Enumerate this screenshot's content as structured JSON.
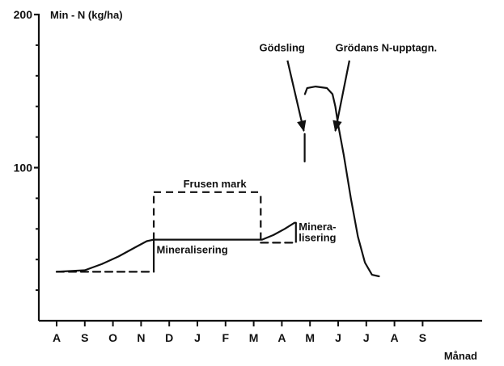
{
  "chart_data": {
    "type": "line",
    "ylabel": "Min - N (kg/ha)",
    "xlabel": "Månad",
    "ylim": [
      0,
      200
    ],
    "yticks": [
      {
        "value": 200,
        "label": "200"
      },
      {
        "value": 100,
        "label": "100"
      }
    ],
    "months": [
      "A",
      "S",
      "O",
      "N",
      "D",
      "J",
      "F",
      "M",
      "A",
      "M",
      "J",
      "J",
      "A",
      "S"
    ],
    "series": [
      {
        "style": "solid",
        "points": [
          [
            0.0,
            32
          ],
          [
            1.0,
            33
          ],
          [
            1.6,
            37
          ],
          [
            2.2,
            42
          ],
          [
            2.8,
            48
          ],
          [
            3.2,
            52
          ],
          [
            3.45,
            53
          ],
          [
            4.0,
            53
          ],
          [
            5.0,
            53
          ],
          [
            6.0,
            53
          ],
          [
            7.0,
            53
          ],
          [
            7.3,
            53
          ],
          [
            7.7,
            56
          ],
          [
            8.1,
            60
          ],
          [
            8.45,
            64
          ],
          [
            8.5,
            64
          ]
        ]
      },
      {
        "style": "solid",
        "points": [
          [
            8.82,
            148
          ],
          [
            8.9,
            152
          ],
          [
            9.2,
            153
          ],
          [
            9.6,
            152
          ],
          [
            9.8,
            148
          ],
          [
            9.9,
            140
          ],
          [
            10.0,
            128
          ],
          [
            10.2,
            108
          ],
          [
            10.45,
            80
          ],
          [
            10.7,
            55
          ],
          [
            10.95,
            38
          ],
          [
            11.2,
            30
          ],
          [
            11.45,
            29
          ]
        ]
      },
      {
        "style": "solid",
        "points": [
          [
            8.81,
            122
          ],
          [
            8.81,
            104
          ]
        ]
      },
      {
        "style": "dashed",
        "points": [
          [
            0.0,
            32
          ],
          [
            3.45,
            32
          ]
        ]
      },
      {
        "style": "dashed",
        "points": [
          [
            7.25,
            51
          ],
          [
            8.5,
            51
          ]
        ]
      }
    ],
    "vertical_segments": [
      {
        "x": 3.45,
        "from": 32,
        "to": 53,
        "style": "solid"
      },
      {
        "x": 8.5,
        "from": 51,
        "to": 64,
        "style": "solid"
      },
      {
        "x": 3.45,
        "from": 53,
        "to": 84,
        "style": "dashed"
      },
      {
        "x": 7.25,
        "from": 53,
        "to": 84,
        "style": "dashed"
      }
    ],
    "horizontal_segments": [
      {
        "y": 84,
        "from": 3.45,
        "to": 7.25,
        "style": "dashed"
      }
    ],
    "annotations": [
      {
        "text": "Frusen mark",
        "x": 4.5,
        "y": 87,
        "align": "start"
      },
      {
        "text": "Mineralisering",
        "x": 3.55,
        "y": 44,
        "align": "start"
      },
      {
        "text": "Minera-",
        "x": 8.6,
        "y": 59,
        "align": "start"
      },
      {
        "text": "lisering",
        "x": 8.6,
        "y": 52,
        "align": "start"
      },
      {
        "text": "Gödsling",
        "x": 7.2,
        "y": 176,
        "align": "start"
      },
      {
        "text": "Grödans N-upptagn.",
        "x": 9.9,
        "y": 176,
        "align": "start"
      }
    ],
    "arrows": [
      {
        "from": [
          8.2,
          170
        ],
        "to": [
          8.78,
          124
        ]
      },
      {
        "from": [
          10.4,
          170
        ],
        "to": [
          9.9,
          124
        ]
      }
    ]
  }
}
